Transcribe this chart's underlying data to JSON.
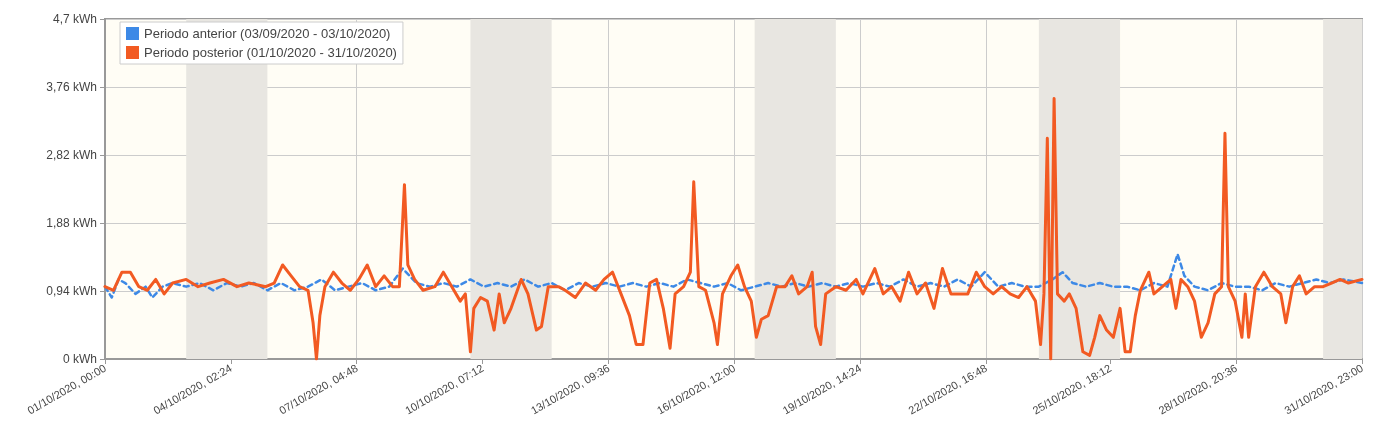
{
  "chart_data": {
    "type": "line",
    "xlim": [
      "2020-10-01T00:00",
      "2020-10-31T23:00"
    ],
    "xticks": [
      {
        "value": "2020-10-01T00:00",
        "label": "01/10/2020, 00:00"
      },
      {
        "value": "2020-10-04T02:24",
        "label": "04/10/2020, 02:24"
      },
      {
        "value": "2020-10-07T04:48",
        "label": "07/10/2020, 04:48"
      },
      {
        "value": "2020-10-10T07:12",
        "label": "10/10/2020, 07:12"
      },
      {
        "value": "2020-10-13T09:36",
        "label": "13/10/2020, 09:36"
      },
      {
        "value": "2020-10-16T12:00",
        "label": "16/10/2020, 12:00"
      },
      {
        "value": "2020-10-19T14:24",
        "label": "19/10/2020, 14:24"
      },
      {
        "value": "2020-10-22T16:48",
        "label": "22/10/2020, 16:48"
      },
      {
        "value": "2020-10-25T18:12",
        "label": "25/10/2020, 18:12"
      },
      {
        "value": "2020-10-28T20:36",
        "label": "28/10/2020, 20:36"
      },
      {
        "value": "2020-10-31T23:00",
        "label": "31/10/2020, 23:00"
      }
    ],
    "ylim": [
      0,
      4.7
    ],
    "yticks": [
      {
        "value": 0,
        "label": "0 kWh"
      },
      {
        "value": 0.94,
        "label": "0,94 kWh"
      },
      {
        "value": 1.88,
        "label": "1,88 kWh"
      },
      {
        "value": 2.82,
        "label": "2,82 kWh"
      },
      {
        "value": 3.76,
        "label": "3,76 kWh"
      },
      {
        "value": 4.7,
        "label": "4,7 kWh"
      }
    ],
    "grid": true,
    "legend": "top left",
    "bands": [
      {
        "axis": "x",
        "from": "2020-10-03T00:00",
        "to": "2020-10-05T00:00",
        "color": "#e8e6e1"
      },
      {
        "axis": "x",
        "from": "2020-10-10T00:00",
        "to": "2020-10-12T00:00",
        "color": "#e8e6e1"
      },
      {
        "axis": "x",
        "from": "2020-10-17T00:00",
        "to": "2020-10-19T00:00",
        "color": "#e8e6e1"
      },
      {
        "axis": "x",
        "from": "2020-10-24T00:00",
        "to": "2020-10-26T00:00",
        "color": "#e8e6e1"
      },
      {
        "axis": "x",
        "from": "2020-10-31T00:00",
        "to": "2020-10-31T23:00",
        "color": "#e8e6e1"
      }
    ],
    "series": [
      {
        "name": "Periodo anterior (03/09/2020 - 03/10/2020)",
        "color": "#3d89e6",
        "line_style": "dashed",
        "x": [
          "2020-10-01T00:00",
          "2020-10-01T04:00",
          "2020-10-01T08:00",
          "2020-10-01T12:00",
          "2020-10-01T18:00",
          "2020-10-02T00:00",
          "2020-10-02T04:00",
          "2020-10-02T10:00",
          "2020-10-02T16:00",
          "2020-10-03T00:00",
          "2020-10-03T08:00",
          "2020-10-03T16:00",
          "2020-10-04T00:00",
          "2020-10-04T08:00",
          "2020-10-04T16:00",
          "2020-10-05T00:00",
          "2020-10-05T08:00",
          "2020-10-05T16:00",
          "2020-10-06T00:00",
          "2020-10-06T08:00",
          "2020-10-06T16:00",
          "2020-10-07T00:00",
          "2020-10-07T08:00",
          "2020-10-07T16:00",
          "2020-10-08T00:00",
          "2020-10-08T08:00",
          "2020-10-08T16:00",
          "2020-10-09T00:00",
          "2020-10-09T08:00",
          "2020-10-09T16:00",
          "2020-10-10T00:00",
          "2020-10-10T08:00",
          "2020-10-10T16:00",
          "2020-10-11T00:00",
          "2020-10-11T08:00",
          "2020-10-11T16:00",
          "2020-10-12T00:00",
          "2020-10-12T08:00",
          "2020-10-12T16:00",
          "2020-10-13T00:00",
          "2020-10-13T08:00",
          "2020-10-13T16:00",
          "2020-10-14T00:00",
          "2020-10-14T08:00",
          "2020-10-14T16:00",
          "2020-10-15T00:00",
          "2020-10-15T08:00",
          "2020-10-15T16:00",
          "2020-10-16T00:00",
          "2020-10-16T08:00",
          "2020-10-16T16:00",
          "2020-10-17T00:00",
          "2020-10-17T08:00",
          "2020-10-17T16:00",
          "2020-10-18T00:00",
          "2020-10-18T08:00",
          "2020-10-18T16:00",
          "2020-10-19T00:00",
          "2020-10-19T08:00",
          "2020-10-19T16:00",
          "2020-10-20T00:00",
          "2020-10-20T08:00",
          "2020-10-20T16:00",
          "2020-10-21T00:00",
          "2020-10-21T08:00",
          "2020-10-21T16:00",
          "2020-10-22T00:00",
          "2020-10-22T08:00",
          "2020-10-22T16:00",
          "2020-10-23T00:00",
          "2020-10-23T08:00",
          "2020-10-23T16:00",
          "2020-10-24T00:00",
          "2020-10-24T08:00",
          "2020-10-24T14:00",
          "2020-10-24T20:00",
          "2020-10-25T04:00",
          "2020-10-25T12:00",
          "2020-10-25T20:00",
          "2020-10-26T04:00",
          "2020-10-26T12:00",
          "2020-10-26T20:00",
          "2020-10-27T04:00",
          "2020-10-27T10:00",
          "2020-10-27T14:00",
          "2020-10-27T20:00",
          "2020-10-28T04:00",
          "2020-10-28T12:00",
          "2020-10-28T20:00",
          "2020-10-29T04:00",
          "2020-10-29T12:00",
          "2020-10-29T20:00",
          "2020-10-30T04:00",
          "2020-10-30T12:00",
          "2020-10-30T20:00",
          "2020-10-31T04:00",
          "2020-10-31T12:00",
          "2020-10-31T23:00"
        ],
        "values": [
          1.0,
          0.85,
          1.1,
          1.05,
          0.9,
          1.0,
          0.85,
          1.0,
          1.05,
          1.0,
          1.05,
          0.95,
          1.05,
          1.0,
          1.05,
          0.95,
          1.05,
          0.95,
          1.0,
          1.1,
          0.95,
          1.0,
          1.05,
          0.95,
          1.0,
          1.25,
          1.05,
          1.0,
          1.05,
          1.0,
          1.1,
          1.0,
          1.05,
          1.0,
          1.1,
          1.0,
          1.05,
          0.95,
          1.05,
          1.0,
          1.05,
          1.0,
          1.05,
          1.0,
          1.05,
          1.0,
          1.1,
          1.05,
          1.0,
          1.05,
          0.95,
          1.0,
          1.05,
          1.0,
          1.05,
          1.0,
          1.05,
          1.0,
          1.05,
          1.0,
          1.05,
          1.0,
          1.1,
          1.0,
          1.05,
          1.0,
          1.1,
          1.0,
          1.2,
          1.0,
          1.05,
          1.0,
          1.0,
          1.1,
          1.2,
          1.05,
          1.0,
          1.05,
          1.0,
          1.0,
          0.95,
          1.05,
          1.0,
          1.45,
          1.15,
          1.0,
          0.95,
          1.05,
          1.0,
          1.0,
          0.95,
          1.05,
          1.0,
          1.05,
          1.1,
          1.05,
          1.1,
          1.05
        ]
      },
      {
        "name": "Periodo posterior (01/10/2020 - 31/10/2020)",
        "color": "#f25a22",
        "line_style": "solid",
        "x": [
          "2020-10-01T00:00",
          "2020-10-01T05:00",
          "2020-10-01T10:00",
          "2020-10-01T15:00",
          "2020-10-01T20:00",
          "2020-10-02T01:00",
          "2020-10-02T06:00",
          "2020-10-02T11:00",
          "2020-10-02T16:00",
          "2020-10-03T00:00",
          "2020-10-03T07:00",
          "2020-10-03T14:00",
          "2020-10-03T22:00",
          "2020-10-04T06:00",
          "2020-10-04T13:00",
          "2020-10-04T23:00",
          "2020-10-05T04:00",
          "2020-10-05T09:00",
          "2020-10-05T14:00",
          "2020-10-05T19:00",
          "2020-10-06T00:00",
          "2020-10-06T03:00",
          "2020-10-06T05:00",
          "2020-10-06T07:00",
          "2020-10-06T10:00",
          "2020-10-06T15:00",
          "2020-10-06T20:00",
          "2020-10-07T01:00",
          "2020-10-07T06:00",
          "2020-10-07T11:00",
          "2020-10-07T16:00",
          "2020-10-07T21:00",
          "2020-10-08T02:00",
          "2020-10-08T06:00",
          "2020-10-08T09:00",
          "2020-10-08T11:00",
          "2020-10-08T15:00",
          "2020-10-08T20:00",
          "2020-10-09T03:00",
          "2020-10-09T08:00",
          "2020-10-09T13:00",
          "2020-10-09T18:00",
          "2020-10-09T21:00",
          "2020-10-10T00:00",
          "2020-10-10T02:00",
          "2020-10-10T06:00",
          "2020-10-10T10:00",
          "2020-10-10T14:00",
          "2020-10-10T17:00",
          "2020-10-10T20:00",
          "2020-10-11T00:00",
          "2020-10-11T06:00",
          "2020-10-11T10:00",
          "2020-10-11T15:00",
          "2020-10-11T18:00",
          "2020-10-11T22:00",
          "2020-10-12T04:00",
          "2020-10-12T08:00",
          "2020-10-12T14:00",
          "2020-10-12T20:00",
          "2020-10-13T02:00",
          "2020-10-13T07:00",
          "2020-10-13T12:00",
          "2020-10-13T17:00",
          "2020-10-13T22:00",
          "2020-10-14T02:00",
          "2020-10-14T06:00",
          "2020-10-14T10:00",
          "2020-10-14T14:00",
          "2020-10-14T18:00",
          "2020-10-14T22:00",
          "2020-10-15T01:00",
          "2020-10-15T06:00",
          "2020-10-15T10:00",
          "2020-10-15T12:00",
          "2020-10-15T15:00",
          "2020-10-15T19:00",
          "2020-10-16T00:00",
          "2020-10-16T02:00",
          "2020-10-16T05:00",
          "2020-10-16T10:00",
          "2020-10-16T14:00",
          "2020-10-16T18:00",
          "2020-10-16T22:00",
          "2020-10-17T01:00",
          "2020-10-17T04:00",
          "2020-10-17T08:00",
          "2020-10-17T13:00",
          "2020-10-17T18:00",
          "2020-10-17T22:00",
          "2020-10-18T02:00",
          "2020-10-18T07:00",
          "2020-10-18T10:00",
          "2020-10-18T12:00",
          "2020-10-18T15:00",
          "2020-10-18T18:00",
          "2020-10-19T00:00",
          "2020-10-19T06:00",
          "2020-10-19T12:00",
          "2020-10-19T16:00",
          "2020-10-19T23:00",
          "2020-10-20T04:00",
          "2020-10-20T09:00",
          "2020-10-20T14:00",
          "2020-10-20T19:00",
          "2020-10-21T00:00",
          "2020-10-21T05:00",
          "2020-10-21T10:00",
          "2020-10-21T15:00",
          "2020-10-21T20:00",
          "2020-10-22T01:00",
          "2020-10-22T06:00",
          "2020-10-22T11:00",
          "2020-10-22T16:00",
          "2020-10-22T21:00",
          "2020-10-23T02:00",
          "2020-10-23T07:00",
          "2020-10-23T12:00",
          "2020-10-23T17:00",
          "2020-10-23T22:00",
          "2020-10-24T01:00",
          "2020-10-24T03:00",
          "2020-10-24T05:00",
          "2020-10-24T07:00",
          "2020-10-24T09:00",
          "2020-10-24T11:00",
          "2020-10-24T15:00",
          "2020-10-24T18:00",
          "2020-10-24T22:00",
          "2020-10-25T02:00",
          "2020-10-25T06:00",
          "2020-10-25T09:00",
          "2020-10-25T12:00",
          "2020-10-25T16:00",
          "2020-10-25T20:00",
          "2020-10-26T00:00",
          "2020-10-26T03:00",
          "2020-10-26T06:00",
          "2020-10-26T09:00",
          "2020-10-26T12:00",
          "2020-10-26T17:00",
          "2020-10-26T20:00",
          "2020-10-27T01:00",
          "2020-10-27T06:00",
          "2020-10-27T09:00",
          "2020-10-27T12:00",
          "2020-10-27T16:00",
          "2020-10-27T20:00",
          "2020-10-28T00:00",
          "2020-10-28T04:00",
          "2020-10-28T08:00",
          "2020-10-28T12:00",
          "2020-10-28T14:00",
          "2020-10-28T16:00",
          "2020-10-28T20:00",
          "2020-10-29T00:00",
          "2020-10-29T02:00",
          "2020-10-29T04:00",
          "2020-10-29T08:00",
          "2020-10-29T13:00",
          "2020-10-29T18:00",
          "2020-10-29T23:00",
          "2020-10-30T02:00",
          "2020-10-30T06:00",
          "2020-10-30T10:00",
          "2020-10-30T14:00",
          "2020-10-30T19:00",
          "2020-10-31T00:00",
          "2020-10-31T05:00",
          "2020-10-31T10:00",
          "2020-10-31T15:00",
          "2020-10-31T23:00"
        ],
        "values": [
          1.0,
          0.95,
          1.2,
          1.2,
          1.0,
          0.95,
          1.1,
          0.9,
          1.05,
          1.1,
          1.0,
          1.05,
          1.1,
          1.0,
          1.05,
          1.0,
          1.05,
          1.3,
          1.15,
          1.0,
          0.95,
          0.5,
          0.0,
          0.6,
          1.0,
          1.2,
          1.05,
          0.95,
          1.1,
          1.3,
          1.0,
          1.15,
          1.0,
          1.0,
          2.41,
          1.3,
          1.1,
          0.95,
          1.0,
          1.2,
          1.0,
          0.8,
          0.9,
          0.1,
          0.7,
          0.85,
          0.8,
          0.4,
          0.9,
          0.5,
          0.7,
          1.1,
          0.9,
          0.4,
          0.45,
          1.0,
          1.0,
          0.95,
          0.85,
          1.05,
          0.95,
          1.1,
          1.2,
          0.9,
          0.6,
          0.2,
          0.2,
          1.05,
          1.1,
          0.7,
          0.15,
          0.9,
          1.0,
          1.2,
          2.45,
          1.0,
          0.95,
          0.5,
          0.2,
          0.9,
          1.15,
          1.3,
          1.0,
          0.8,
          0.3,
          0.55,
          0.6,
          1.0,
          1.0,
          1.15,
          0.9,
          1.0,
          1.2,
          0.45,
          0.2,
          0.9,
          1.0,
          0.95,
          1.1,
          0.9,
          1.25,
          0.9,
          1.0,
          0.8,
          1.2,
          0.9,
          1.05,
          0.7,
          1.25,
          0.9,
          0.9,
          0.9,
          1.2,
          1.0,
          0.9,
          1.0,
          0.9,
          0.85,
          1.0,
          0.8,
          0.2,
          0.9,
          3.05,
          0.0,
          3.6,
          0.9,
          0.8,
          0.9,
          0.7,
          0.1,
          0.05,
          0.3,
          0.6,
          0.4,
          0.3,
          0.7,
          0.1,
          0.1,
          0.6,
          0.95,
          1.2,
          0.9,
          1.0,
          1.1,
          0.7,
          1.1,
          1.0,
          0.8,
          0.3,
          0.5,
          0.9,
          1.0,
          3.12,
          1.0,
          0.8,
          0.3,
          0.9,
          0.3,
          1.0,
          1.2,
          1.0,
          0.9,
          0.5,
          1.0,
          1.15,
          0.9,
          1.0,
          1.0,
          1.05,
          1.1,
          1.05,
          1.1
        ]
      }
    ]
  }
}
